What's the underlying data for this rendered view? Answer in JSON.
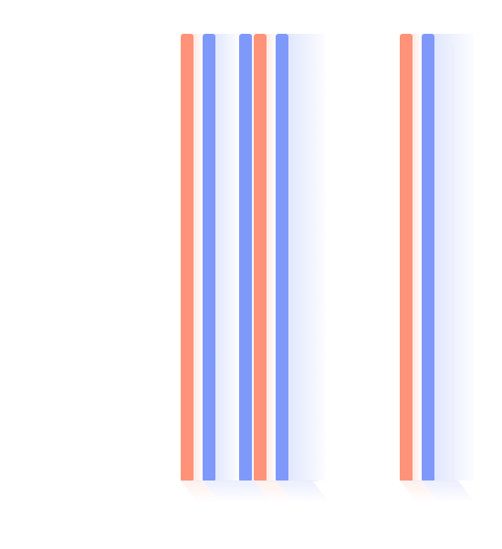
{
  "colors": {
    "coral": "#fe9379",
    "blue": "#7f99fb",
    "background": "#ffffff"
  },
  "columns": [
    {
      "id": "c1",
      "color": "coral",
      "cap": ""
    },
    {
      "id": "c2",
      "color": "blue",
      "cap": ""
    },
    {
      "id": "c3",
      "color": "blue",
      "cap": ""
    },
    {
      "id": "c4",
      "color": "coral",
      "cap": ""
    },
    {
      "id": "c5",
      "color": "blue",
      "cap": ""
    },
    {
      "id": "c6",
      "color": "coral",
      "cap": ""
    },
    {
      "id": "c7",
      "color": "blue",
      "cap": ""
    }
  ],
  "tick_labels": [
    "",
    "",
    ""
  ]
}
